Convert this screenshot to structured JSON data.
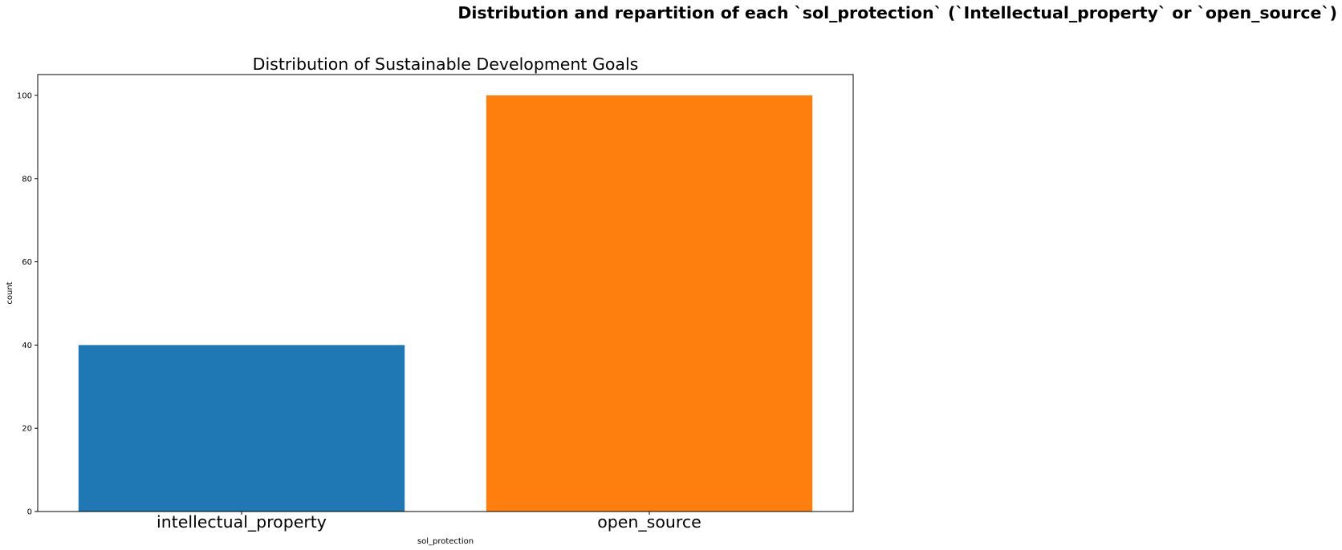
{
  "figure": {
    "suptitle": "Distribution and repartition  of each `sol_protection` (`Intellectual_property` or `open_source`)"
  },
  "chart_data": {
    "type": "bar",
    "title": "Distribution of Sustainable Development Goals",
    "xlabel": "sol_protection",
    "ylabel": "count",
    "categories": [
      "intellectual_property",
      "open_source"
    ],
    "values": [
      40,
      100
    ],
    "colors": [
      "#1f77b4",
      "#ff7f0e"
    ],
    "ylim": [
      0,
      105
    ],
    "yticks": [
      0,
      20,
      40,
      60,
      80,
      100
    ],
    "grid": false
  }
}
